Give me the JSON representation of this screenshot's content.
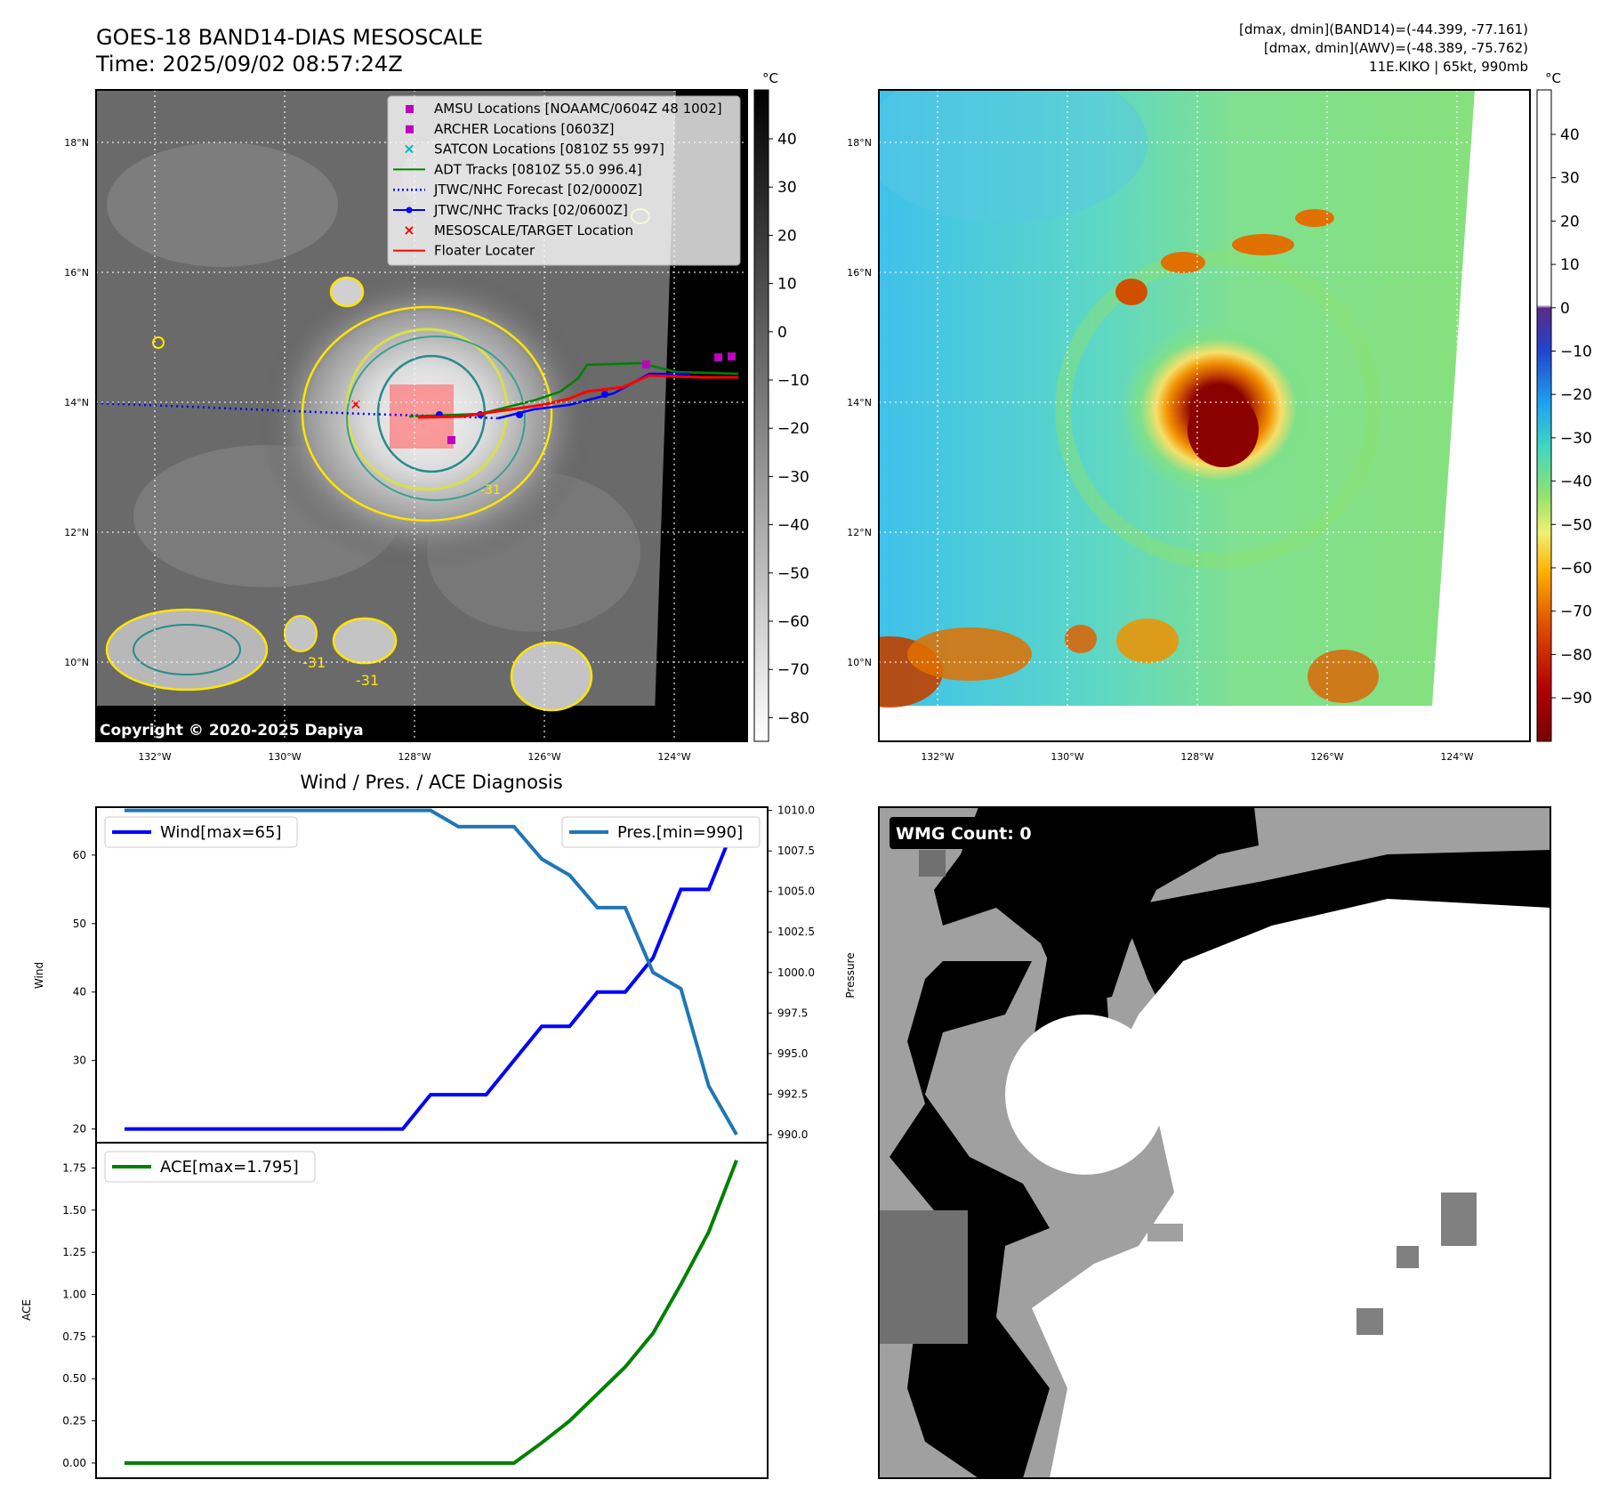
{
  "header": {
    "title": "GOES-18 BAND14-DIAS MESOSCALE",
    "time": "Time: 2025/09/02 08:57:24Z",
    "stats_band14": "[dmax, dmin](BAND14)=(-44.399, -77.161)",
    "stats_awv": "[dmax, dmin](AWV)=(-48.389, -75.762)",
    "storm": "11E.KIKO | 65kt, 990mb"
  },
  "ir_panel": {
    "copyright": "Copyright © 2020-2025 Dapiya",
    "lat_labels": [
      "18°N",
      "16°N",
      "14°N",
      "12°N",
      "10°N"
    ],
    "lon_labels": [
      "132°W",
      "130°W",
      "128°W",
      "126°W",
      "124°W"
    ],
    "contour_labels": [
      "-31",
      "-31",
      "-31"
    ],
    "legend": [
      {
        "label": "AMSU Locations [NOAAMC/0604Z 48 1002]",
        "color": "#c000c0",
        "marker": "square"
      },
      {
        "label": "ARCHER Locations [0603Z]",
        "color": "#c000c0",
        "marker": "square"
      },
      {
        "label": "SATCON Locations [0810Z 55 997]",
        "color": "#00b5b5",
        "marker": "x"
      },
      {
        "label": "ADT Tracks [0810Z 55.0 996.4]",
        "color": "#008000",
        "marker": "line"
      },
      {
        "label": "JTWC/NHC Forecast [02/0000Z]",
        "color": "#0000ff",
        "marker": "dotted"
      },
      {
        "label": "JTWC/NHC Tracks [02/0600Z]",
        "color": "#0000ff",
        "marker": "line-dot"
      },
      {
        "label": "MESOSCALE/TARGET Location",
        "color": "#ff0000",
        "marker": "x"
      },
      {
        "label": "Floater Locater",
        "color": "#ff0000",
        "marker": "line"
      }
    ],
    "colorbar": {
      "unit": "°C",
      "ticks": [
        "40",
        "30",
        "20",
        "10",
        "0",
        "−10",
        "−20",
        "−30",
        "−40",
        "−50",
        "−60",
        "−70",
        "−80"
      ]
    }
  },
  "awv_panel": {
    "lat_labels": [
      "18°N",
      "16°N",
      "14°N",
      "12°N",
      "10°N"
    ],
    "lon_labels": [
      "132°W",
      "130°W",
      "128°W",
      "126°W",
      "124°W"
    ],
    "colorbar": {
      "unit": "°C",
      "ticks": [
        "40",
        "30",
        "20",
        "10",
        "0",
        "−10",
        "−20",
        "−30",
        "−40",
        "−50",
        "−60",
        "−70",
        "−80",
        "−90"
      ]
    }
  },
  "wmg_panel": {
    "label": "WMG Count: 0"
  },
  "colors": {
    "wind": "#0000ff",
    "pressure": "#1f77b4",
    "ace": "#008000",
    "track_red": "#ff0000"
  },
  "chart_data": [
    {
      "type": "line",
      "title": "Wind / Pres. / ACE Diagnosis",
      "ylabel": "Wind",
      "ylim": [
        18,
        67
      ],
      "yticks": [
        "20",
        "30",
        "40",
        "50",
        "60"
      ],
      "y2label": "Pressure",
      "y2lim": [
        989.5,
        1010.2
      ],
      "y2ticks": [
        "1010.0",
        "1007.5",
        "1005.0",
        "1002.5",
        "1000.0",
        "997.5",
        "995.0",
        "992.5",
        "990.0"
      ],
      "series": [
        {
          "name": "Wind",
          "legend": "Wind[max=65]",
          "axis": "left",
          "values": [
            20,
            20,
            20,
            20,
            20,
            20,
            20,
            20,
            20,
            20,
            20,
            25,
            25,
            25,
            30,
            35,
            35,
            40,
            40,
            45,
            55,
            55,
            65
          ]
        },
        {
          "name": "Pressure",
          "legend": "Pres.[min=990]",
          "axis": "right",
          "values": [
            1010,
            1010,
            1010,
            1010,
            1010,
            1010,
            1010,
            1010,
            1010,
            1010,
            1010,
            1010,
            1009,
            1009,
            1009,
            1007,
            1006,
            1004,
            1004,
            1000,
            999,
            993,
            990
          ]
        }
      ]
    },
    {
      "type": "line",
      "ylabel": "ACE",
      "ylim": [
        -0.09,
        1.9
      ],
      "yticks": [
        "0.00",
        "0.25",
        "0.50",
        "0.75",
        "1.00",
        "1.25",
        "1.50",
        "1.75"
      ],
      "series": [
        {
          "name": "ACE",
          "legend": "ACE[max=1.795]",
          "values": [
            0,
            0,
            0,
            0,
            0,
            0,
            0,
            0,
            0,
            0,
            0,
            0,
            0,
            0,
            0,
            0.12,
            0.25,
            0.41,
            0.57,
            0.77,
            1.06,
            1.37,
            1.795
          ]
        }
      ]
    }
  ]
}
